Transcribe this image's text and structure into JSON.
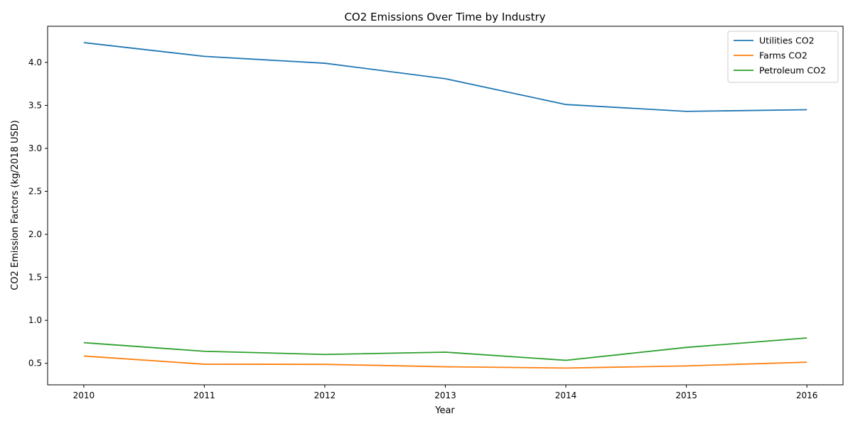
{
  "chart_data": {
    "type": "line",
    "title": "CO2 Emissions Over Time by Industry",
    "xlabel": "Year",
    "ylabel": "CO2 Emission Factors (kg/2018 USD)",
    "x": [
      2010,
      2011,
      2012,
      2013,
      2014,
      2015,
      2016
    ],
    "xlim": [
      2009.7,
      2016.3
    ],
    "ylim": [
      0.25,
      4.42
    ],
    "yticks": [
      0.5,
      1.0,
      1.5,
      2.0,
      2.5,
      3.0,
      3.5,
      4.0
    ],
    "ytick_labels": [
      "0.5",
      "1.0",
      "1.5",
      "2.0",
      "2.5",
      "3.0",
      "3.5",
      "4.0"
    ],
    "grid": false,
    "legend_position": "top-right",
    "series": [
      {
        "name": "Utilities CO2",
        "color": "#1f77b4",
        "values": [
          4.23,
          4.07,
          3.99,
          3.81,
          3.51,
          3.43,
          3.45
        ]
      },
      {
        "name": "Farms CO2",
        "color": "#ff7f0e",
        "values": [
          0.585,
          0.49,
          0.488,
          0.46,
          0.445,
          0.47,
          0.513
        ]
      },
      {
        "name": "Petroleum CO2",
        "color": "#2ca02c",
        "values": [
          0.74,
          0.64,
          0.603,
          0.63,
          0.535,
          0.685,
          0.795
        ]
      }
    ]
  }
}
